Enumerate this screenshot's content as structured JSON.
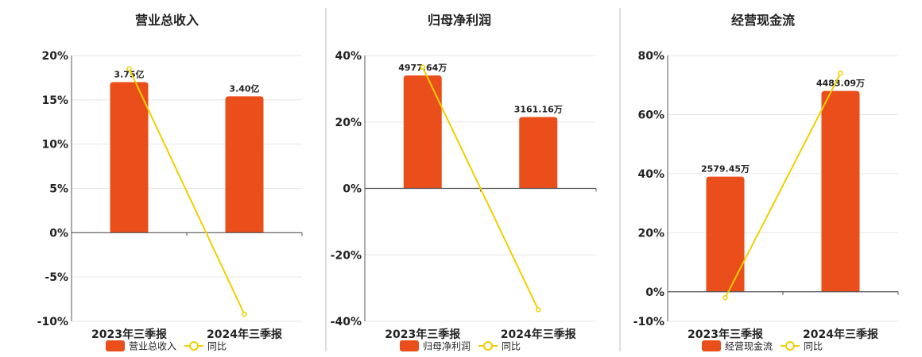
{
  "colors": {
    "bar": "#E94E1B",
    "line": "#F2CF00",
    "grid": "#e6e6e6",
    "axis": "#555555",
    "divider": "#bdbdbd"
  },
  "chart_data": [
    {
      "type": "bar",
      "title": "营业总收入",
      "categories": [
        "2023年三季报",
        "2024年三季报"
      ],
      "series": [
        {
          "name": "营业总收入",
          "type": "bar",
          "values": [
            17.0,
            15.4
          ],
          "labels": [
            "3.75亿",
            "3.40亿"
          ]
        },
        {
          "name": "同比",
          "type": "line",
          "values": [
            18.5,
            -9.2
          ]
        }
      ],
      "ylim": [
        -10,
        20
      ],
      "yticks": [
        20,
        15,
        10,
        5,
        0,
        -5,
        -10
      ],
      "ytick_labels": [
        "20%",
        "15%",
        "10%",
        "5%",
        "0%",
        "-5%",
        "-10%"
      ],
      "grid": true,
      "legend": "bottom"
    },
    {
      "type": "bar",
      "title": "归母净利润",
      "categories": [
        "2023年三季报",
        "2024年三季报"
      ],
      "series": [
        {
          "name": "归母净利润",
          "type": "bar",
          "values": [
            34.0,
            21.5
          ],
          "labels": [
            "4977.64万",
            "3161.16万"
          ]
        },
        {
          "name": "同比",
          "type": "line",
          "values": [
            36.5,
            -36.5
          ]
        }
      ],
      "ylim": [
        -40,
        40
      ],
      "yticks": [
        40,
        20,
        0,
        -20,
        -40
      ],
      "ytick_labels": [
        "40%",
        "20%",
        "0%",
        "-20%",
        "-40%"
      ],
      "grid": true,
      "legend": "bottom"
    },
    {
      "type": "bar",
      "title": "经营现金流",
      "categories": [
        "2023年三季报",
        "2024年三季报"
      ],
      "series": [
        {
          "name": "经营现金流",
          "type": "bar",
          "values": [
            39.0,
            68.0
          ],
          "labels": [
            "2579.45万",
            "4483.09万"
          ]
        },
        {
          "name": "同比",
          "type": "line",
          "values": [
            -2.0,
            74.0
          ]
        }
      ],
      "ylim": [
        -10,
        80
      ],
      "yticks": [
        80,
        60,
        40,
        20,
        0,
        -10
      ],
      "ytick_labels": [
        "80%",
        "60%",
        "40%",
        "20%",
        "0%",
        "-10%"
      ],
      "grid": true,
      "legend": "bottom"
    }
  ]
}
